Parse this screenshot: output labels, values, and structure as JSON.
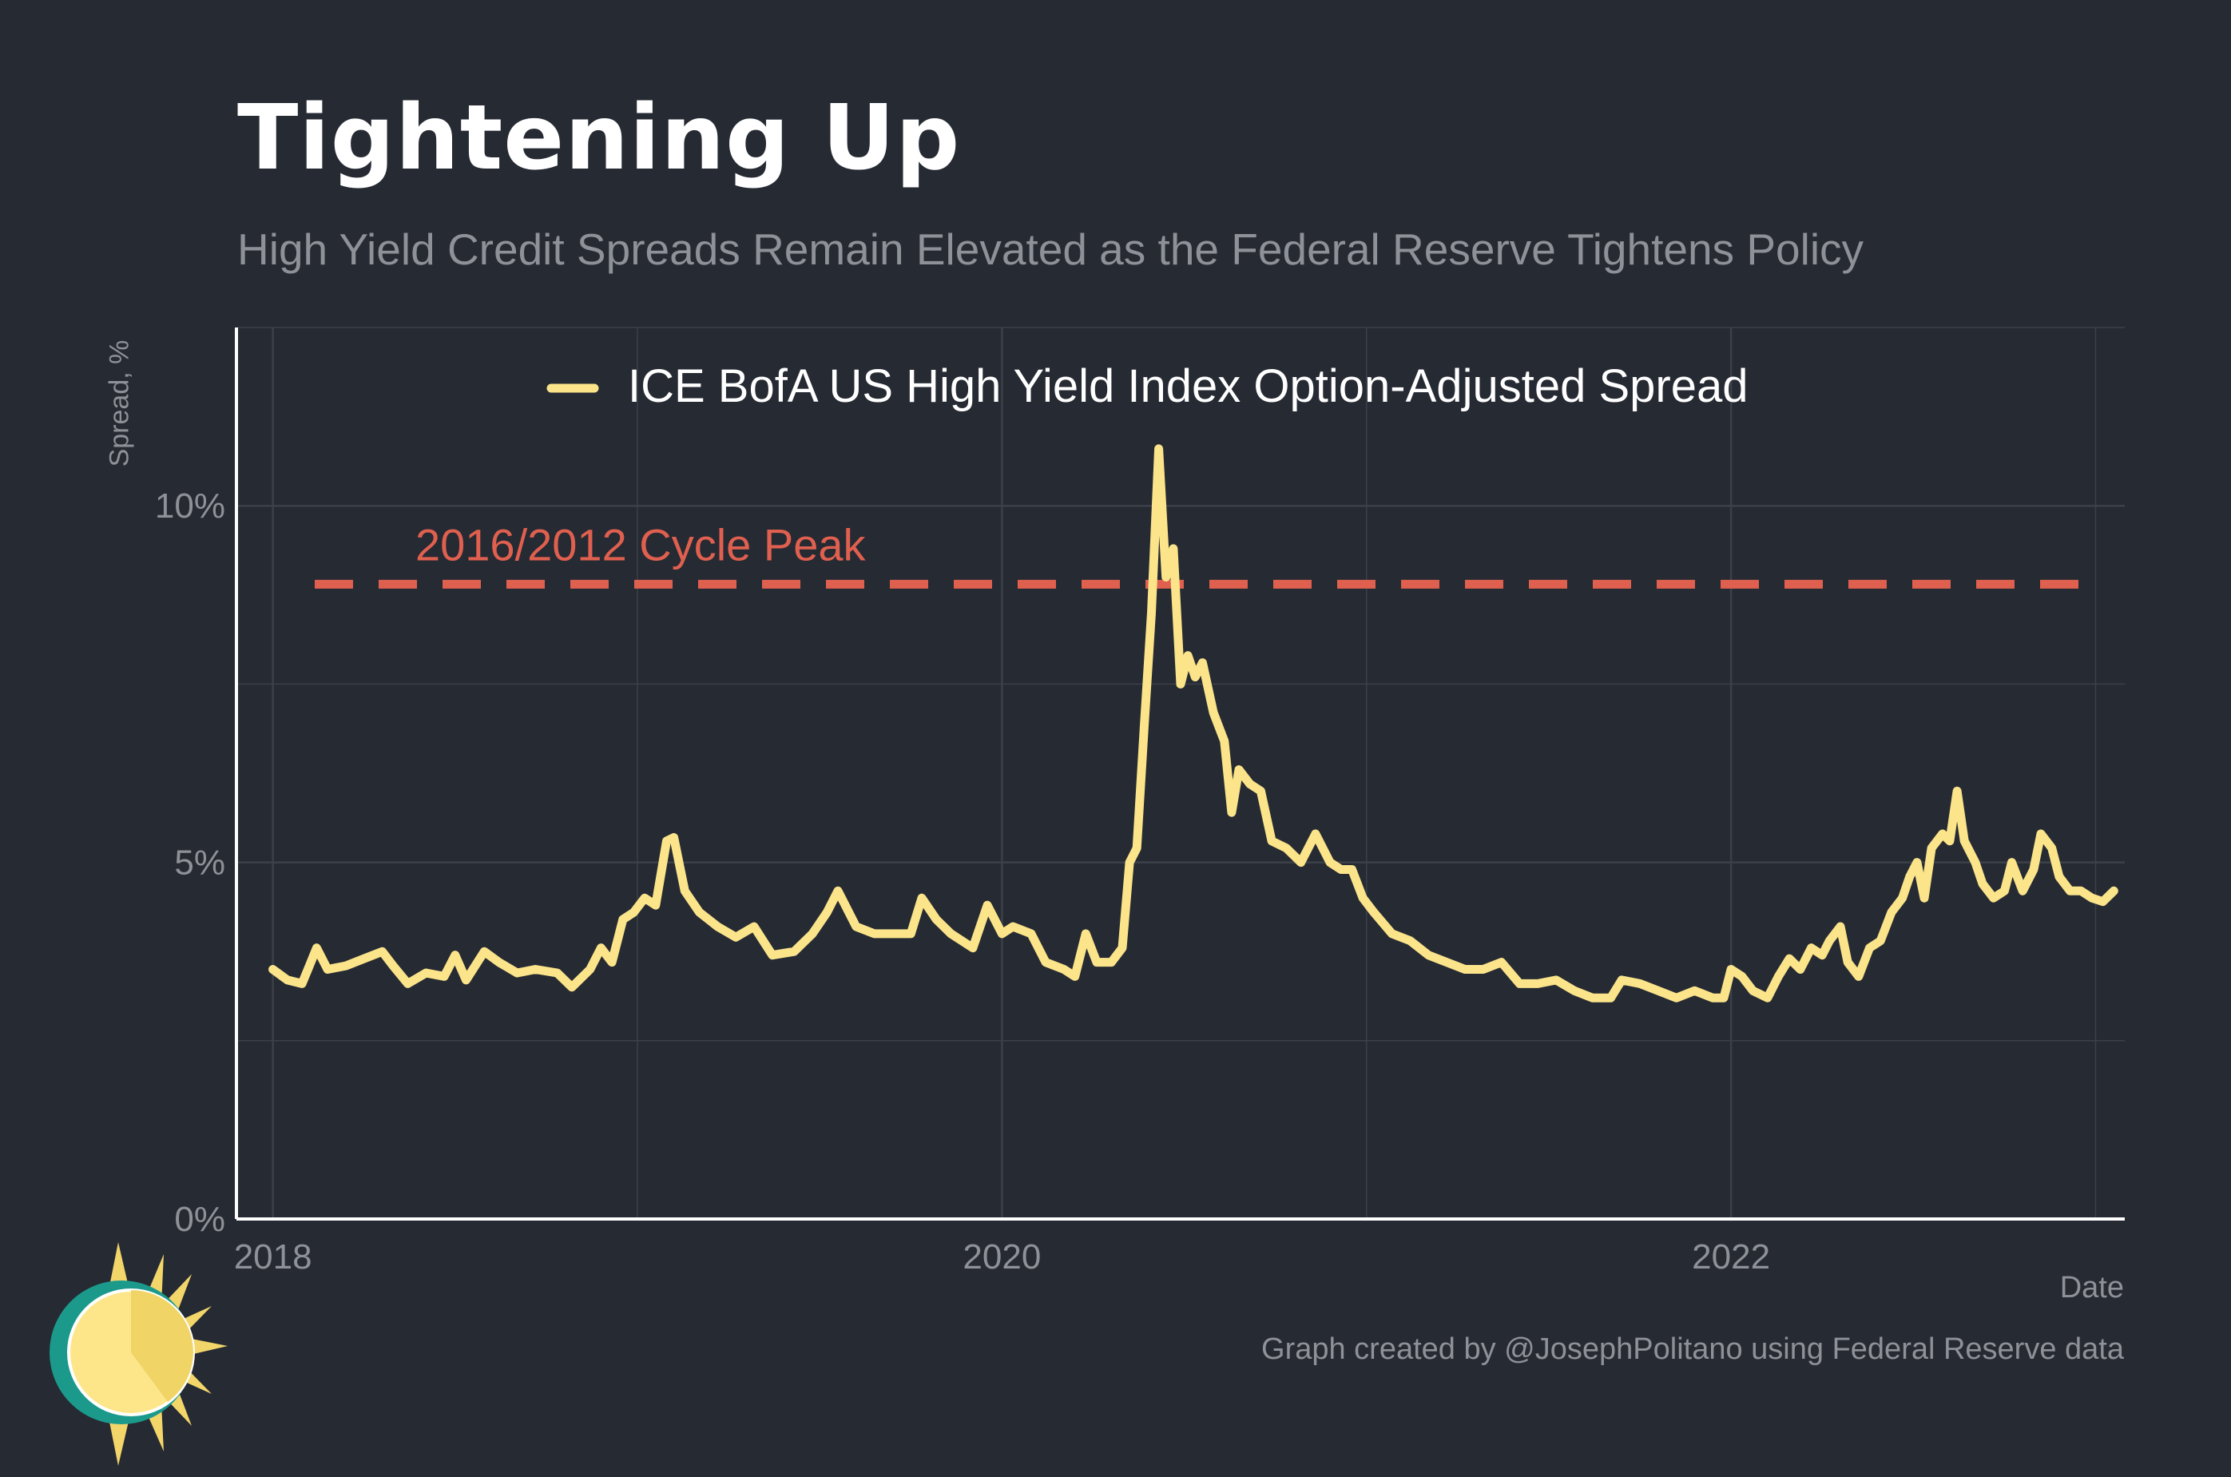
{
  "chart_data": {
    "type": "line",
    "title": "Tightening Up",
    "subtitle": "High Yield Credit Spreads Remain Elevated as the Federal Reserve Tightens Policy",
    "xlabel": "Date",
    "ylabel": "Spread, %",
    "xlim": [
      2017.9,
      2023.08
    ],
    "ylim": [
      0,
      12.5
    ],
    "x_ticks": [
      2018,
      2020,
      2022
    ],
    "x_tick_labels": [
      "2018",
      "2020",
      "2022"
    ],
    "y_ticks": [
      0,
      5,
      10
    ],
    "y_tick_labels": [
      "0%",
      "5%",
      "10%"
    ],
    "grid": true,
    "legend_position": "top-center",
    "series": [
      {
        "name": "ICE BofA US High Yield Index Option-Adjusted Spread",
        "color": "#fbe48a",
        "points": [
          [
            2018.0,
            3.5
          ],
          [
            2018.04,
            3.35
          ],
          [
            2018.08,
            3.3
          ],
          [
            2018.1,
            3.55
          ],
          [
            2018.12,
            3.8
          ],
          [
            2018.15,
            3.5
          ],
          [
            2018.2,
            3.55
          ],
          [
            2018.25,
            3.65
          ],
          [
            2018.3,
            3.75
          ],
          [
            2018.33,
            3.55
          ],
          [
            2018.37,
            3.3
          ],
          [
            2018.42,
            3.45
          ],
          [
            2018.47,
            3.4
          ],
          [
            2018.5,
            3.7
          ],
          [
            2018.53,
            3.35
          ],
          [
            2018.58,
            3.75
          ],
          [
            2018.62,
            3.6
          ],
          [
            2018.67,
            3.45
          ],
          [
            2018.72,
            3.5
          ],
          [
            2018.78,
            3.45
          ],
          [
            2018.82,
            3.25
          ],
          [
            2018.87,
            3.5
          ],
          [
            2018.9,
            3.8
          ],
          [
            2018.93,
            3.6
          ],
          [
            2018.96,
            4.2
          ],
          [
            2018.99,
            4.3
          ],
          [
            2019.02,
            4.5
          ],
          [
            2019.05,
            4.4
          ],
          [
            2019.08,
            5.3
          ],
          [
            2019.1,
            5.35
          ],
          [
            2019.13,
            4.6
          ],
          [
            2019.17,
            4.3
          ],
          [
            2019.22,
            4.1
          ],
          [
            2019.27,
            3.95
          ],
          [
            2019.32,
            4.1
          ],
          [
            2019.37,
            3.7
          ],
          [
            2019.43,
            3.75
          ],
          [
            2019.48,
            4.0
          ],
          [
            2019.52,
            4.3
          ],
          [
            2019.55,
            4.6
          ],
          [
            2019.6,
            4.1
          ],
          [
            2019.65,
            4.0
          ],
          [
            2019.7,
            4.0
          ],
          [
            2019.75,
            4.0
          ],
          [
            2019.78,
            4.5
          ],
          [
            2019.82,
            4.2
          ],
          [
            2019.86,
            4.0
          ],
          [
            2019.92,
            3.8
          ],
          [
            2019.96,
            4.4
          ],
          [
            2020.0,
            4.0
          ],
          [
            2020.03,
            4.1
          ],
          [
            2020.08,
            4.0
          ],
          [
            2020.12,
            3.6
          ],
          [
            2020.17,
            3.5
          ],
          [
            2020.2,
            3.4
          ],
          [
            2020.23,
            4.0
          ],
          [
            2020.26,
            3.6
          ],
          [
            2020.3,
            3.6
          ],
          [
            2020.33,
            3.8
          ],
          [
            2020.35,
            5.0
          ],
          [
            2020.37,
            5.2
          ],
          [
            2020.39,
            6.9
          ],
          [
            2020.41,
            8.5
          ],
          [
            2020.43,
            10.8
          ],
          [
            2020.45,
            9.0
          ],
          [
            2020.47,
            9.4
          ],
          [
            2020.49,
            7.5
          ],
          [
            2020.51,
            7.9
          ],
          [
            2020.53,
            7.6
          ],
          [
            2020.55,
            7.8
          ],
          [
            2020.58,
            7.1
          ],
          [
            2020.61,
            6.7
          ],
          [
            2020.63,
            5.7
          ],
          [
            2020.65,
            6.3
          ],
          [
            2020.68,
            6.1
          ],
          [
            2020.71,
            6.0
          ],
          [
            2020.74,
            5.3
          ],
          [
            2020.78,
            5.2
          ],
          [
            2020.82,
            5.0
          ],
          [
            2020.86,
            5.4
          ],
          [
            2020.9,
            5.0
          ],
          [
            2020.93,
            4.9
          ],
          [
            2020.96,
            4.9
          ],
          [
            2020.99,
            4.5
          ],
          [
            2021.02,
            4.3
          ],
          [
            2021.07,
            4.0
          ],
          [
            2021.12,
            3.9
          ],
          [
            2021.17,
            3.7
          ],
          [
            2021.22,
            3.6
          ],
          [
            2021.27,
            3.5
          ],
          [
            2021.32,
            3.5
          ],
          [
            2021.37,
            3.6
          ],
          [
            2021.42,
            3.3
          ],
          [
            2021.47,
            3.3
          ],
          [
            2021.52,
            3.35
          ],
          [
            2021.57,
            3.2
          ],
          [
            2021.62,
            3.1
          ],
          [
            2021.67,
            3.1
          ],
          [
            2021.7,
            3.35
          ],
          [
            2021.75,
            3.3
          ],
          [
            2021.8,
            3.2
          ],
          [
            2021.85,
            3.1
          ],
          [
            2021.9,
            3.2
          ],
          [
            2021.95,
            3.1
          ],
          [
            2021.98,
            3.1
          ],
          [
            2022.0,
            3.5
          ],
          [
            2022.03,
            3.4
          ],
          [
            2022.06,
            3.2
          ],
          [
            2022.1,
            3.1
          ],
          [
            2022.13,
            3.4
          ],
          [
            2022.16,
            3.65
          ],
          [
            2022.19,
            3.5
          ],
          [
            2022.22,
            3.8
          ],
          [
            2022.25,
            3.7
          ],
          [
            2022.27,
            3.9
          ],
          [
            2022.3,
            4.1
          ],
          [
            2022.32,
            3.6
          ],
          [
            2022.35,
            3.4
          ],
          [
            2022.38,
            3.8
          ],
          [
            2022.41,
            3.9
          ],
          [
            2022.44,
            4.3
          ],
          [
            2022.47,
            4.5
          ],
          [
            2022.49,
            4.8
          ],
          [
            2022.51,
            5.0
          ],
          [
            2022.53,
            4.5
          ],
          [
            2022.55,
            5.2
          ],
          [
            2022.58,
            5.4
          ],
          [
            2022.6,
            5.3
          ],
          [
            2022.62,
            6.0
          ],
          [
            2022.64,
            5.3
          ],
          [
            2022.67,
            5.0
          ],
          [
            2022.69,
            4.7
          ],
          [
            2022.72,
            4.5
          ],
          [
            2022.75,
            4.6
          ],
          [
            2022.77,
            5.0
          ],
          [
            2022.8,
            4.6
          ],
          [
            2022.83,
            4.9
          ],
          [
            2022.85,
            5.4
          ],
          [
            2022.88,
            5.2
          ],
          [
            2022.9,
            4.8
          ],
          [
            2022.93,
            4.6
          ],
          [
            2022.96,
            4.6
          ],
          [
            2022.99,
            4.5
          ],
          [
            2023.02,
            4.45
          ],
          [
            2023.05,
            4.6
          ]
        ]
      }
    ],
    "annotations": [
      {
        "type": "hline",
        "y": 8.9,
        "label": "2016/2012 Cycle Peak",
        "color": "#e0604f",
        "style": "dashed"
      }
    ],
    "caption": "Graph created by @JosephPolitano using Federal Reserve data"
  }
}
